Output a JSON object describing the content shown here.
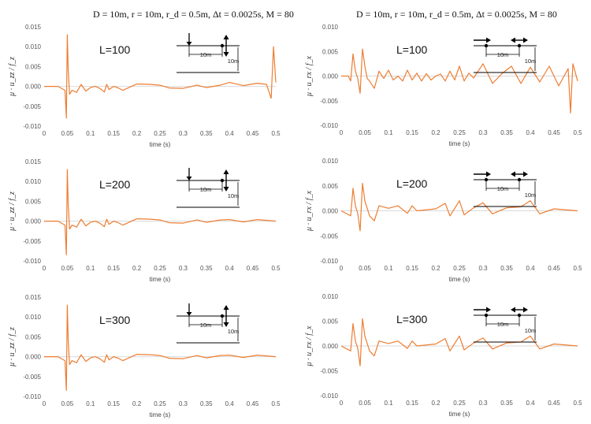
{
  "header_left": "D = 10m,   r = 10m,   r_d = 0.5m,   Δt = 0.0025s,   M = 80",
  "header_right": "D = 10m,   r = 10m,   r_d = 0.5m,   Δt = 0.0025s,   M = 80",
  "line_color": "#ED7D31",
  "chart_data": [
    {
      "type": "line",
      "panel": "left-1",
      "label": "L=100",
      "ylabel": "μ · u_zz / f_z",
      "xlabel": "time  (s)",
      "xlim": [
        0,
        0.5
      ],
      "ylim": [
        -0.01,
        0.015
      ],
      "grid": false,
      "yticks": [
        "0.015",
        "0.010",
        "0.005",
        "0.000",
        "-0.005",
        "-0.010"
      ],
      "xticks": [
        "0",
        "0.05",
        "0.1",
        "0.15",
        "0.2",
        "0.25",
        "0.3",
        "0.35",
        "0.4",
        "0.45",
        "0.5"
      ],
      "diagram": {
        "dist1": "10m",
        "dist2": "10m"
      },
      "x": [
        0,
        0.02,
        0.03,
        0.045,
        0.048,
        0.05,
        0.052,
        0.055,
        0.06,
        0.07,
        0.08,
        0.09,
        0.1,
        0.11,
        0.12,
        0.13,
        0.135,
        0.14,
        0.15,
        0.16,
        0.17,
        0.2,
        0.23,
        0.25,
        0.27,
        0.3,
        0.33,
        0.35,
        0.38,
        0.4,
        0.43,
        0.46,
        0.48,
        0.49,
        0.495,
        0.5
      ],
      "y": [
        0,
        0,
        0,
        -0.001,
        -0.008,
        0.013,
        0.004,
        -0.002,
        -0.001,
        -0.0015,
        0.0005,
        -0.0012,
        -0.0003,
        0,
        -0.0005,
        -0.0014,
        0.0005,
        -0.0008,
        0,
        -0.0004,
        -0.001,
        0.0006,
        0.0005,
        0.0003,
        -0.0004,
        -0.0005,
        0.0003,
        -0.0003,
        0.0003,
        0.001,
        0.0002,
        0.0008,
        0.0005,
        -0.003,
        0.01,
        0.001
      ]
    },
    {
      "type": "line",
      "panel": "right-1",
      "label": "L=100",
      "ylabel": "μ · u_rx / f_x",
      "xlabel": "time  (s)",
      "xlim": [
        0,
        0.5
      ],
      "ylim": [
        -0.01,
        0.01
      ],
      "grid": false,
      "yticks": [
        "0.010",
        "0.005",
        "0.000",
        "-0.005",
        "-0.010"
      ],
      "xticks": [
        "0",
        "0.05",
        "0.1",
        "0.15",
        "0.2",
        "0.25",
        "0.3",
        "0.35",
        "0.4",
        "0.45",
        "0.5"
      ],
      "diagram": {
        "dist1": "10m",
        "dist2": "10m"
      },
      "x": [
        0,
        0.01,
        0.015,
        0.02,
        0.025,
        0.03,
        0.035,
        0.04,
        0.045,
        0.05,
        0.055,
        0.06,
        0.07,
        0.08,
        0.09,
        0.1,
        0.11,
        0.12,
        0.13,
        0.14,
        0.15,
        0.16,
        0.17,
        0.18,
        0.19,
        0.2,
        0.21,
        0.22,
        0.23,
        0.24,
        0.25,
        0.26,
        0.27,
        0.28,
        0.3,
        0.32,
        0.34,
        0.36,
        0.38,
        0.4,
        0.42,
        0.44,
        0.46,
        0.48,
        0.485,
        0.49,
        0.5
      ],
      "y": [
        0,
        0,
        0,
        -0.001,
        0.0045,
        0.001,
        -0.0005,
        -0.0035,
        0.0055,
        0.002,
        -0.0005,
        -0.001,
        -0.0025,
        0.001,
        -0.0005,
        0.0012,
        -0.0008,
        0,
        -0.001,
        0.0012,
        -0.0008,
        0.0006,
        -0.001,
        0.0005,
        -0.0008,
        0,
        0.0004,
        -0.001,
        0.001,
        -0.0008,
        0.002,
        -0.001,
        0.0006,
        -0.0004,
        0.0025,
        -0.0015,
        0.0005,
        0.002,
        -0.0015,
        0.0018,
        -0.0012,
        0.002,
        -0.002,
        0.0015,
        -0.0075,
        0.0025,
        -0.001
      ]
    },
    {
      "type": "line",
      "panel": "left-2",
      "label": "L=200",
      "ylabel": "μ · u_zz / f_z",
      "xlabel": "time  (s)",
      "xlim": [
        0,
        0.5
      ],
      "ylim": [
        -0.01,
        0.015
      ],
      "grid": false,
      "yticks": [
        "0.015",
        "0.010",
        "0.005",
        "0.000",
        "-0.005",
        "-0.010"
      ],
      "xticks": [
        "0",
        "0.05",
        "0.1",
        "0.15",
        "0.2",
        "0.25",
        "0.3",
        "0.35",
        "0.4",
        "0.45",
        "0.5"
      ],
      "diagram": {
        "dist1": "10m",
        "dist2": "10m"
      },
      "x": [
        0,
        0.02,
        0.03,
        0.045,
        0.048,
        0.05,
        0.052,
        0.055,
        0.06,
        0.07,
        0.08,
        0.09,
        0.1,
        0.11,
        0.12,
        0.13,
        0.135,
        0.14,
        0.15,
        0.16,
        0.17,
        0.2,
        0.23,
        0.25,
        0.27,
        0.3,
        0.33,
        0.35,
        0.38,
        0.4,
        0.43,
        0.46,
        0.48,
        0.5
      ],
      "y": [
        0,
        0,
        0,
        -0.001,
        -0.0085,
        0.013,
        0.004,
        -0.002,
        -0.001,
        -0.0015,
        0.0005,
        -0.0012,
        -0.0003,
        0,
        -0.0005,
        -0.0014,
        0.0005,
        -0.0008,
        0,
        -0.0004,
        -0.001,
        0.0006,
        0.0005,
        0.0003,
        -0.0004,
        -0.0005,
        0.0003,
        -0.0003,
        0.0003,
        0.0004,
        -0.0002,
        0.0004,
        0.0002,
        0
      ]
    },
    {
      "type": "line",
      "panel": "right-2",
      "label": "L=200",
      "ylabel": "μ · u_rx / f_x",
      "xlabel": "time  (s)",
      "xlim": [
        0,
        0.5
      ],
      "ylim": [
        -0.01,
        0.01
      ],
      "grid": false,
      "yticks": [
        "0.010",
        "0.005",
        "0.000",
        "-0.005",
        "-0.010"
      ],
      "xticks": [
        "0",
        "0.05",
        "0.1",
        "0.15",
        "0.2",
        "0.25",
        "0.3",
        "0.35",
        "0.4",
        "0.45",
        "0.5"
      ],
      "diagram": {
        "dist1": "10m",
        "dist2": "10m"
      },
      "x": [
        0,
        0.02,
        0.025,
        0.03,
        0.035,
        0.04,
        0.045,
        0.05,
        0.06,
        0.07,
        0.08,
        0.1,
        0.12,
        0.14,
        0.15,
        0.16,
        0.2,
        0.22,
        0.23,
        0.25,
        0.26,
        0.28,
        0.3,
        0.32,
        0.35,
        0.38,
        0.4,
        0.42,
        0.45,
        0.5
      ],
      "y": [
        0,
        -0.001,
        0.0045,
        0.001,
        -0.0005,
        -0.004,
        0.0055,
        0.002,
        -0.001,
        -0.002,
        0.001,
        0.0005,
        0.001,
        -0.0005,
        0.001,
        0,
        0.0004,
        0.0015,
        -0.001,
        0.002,
        -0.0008,
        0.0006,
        0.0016,
        -0.0006,
        0.0006,
        0.0008,
        0.002,
        -0.0006,
        0.0004,
        0
      ]
    },
    {
      "type": "line",
      "panel": "left-3",
      "label": "L=300",
      "ylabel": "μ · u_zz / f_z",
      "xlabel": "time  (s)",
      "xlim": [
        0,
        0.5
      ],
      "ylim": [
        -0.01,
        0.015
      ],
      "grid": false,
      "yticks": [
        "0.015",
        "0.010",
        "0.005",
        "0.000",
        "-0.005",
        "-0.010"
      ],
      "xticks": [
        "0",
        "0.05",
        "0.1",
        "0.15",
        "0.2",
        "0.25",
        "0.3",
        "0.35",
        "0.4",
        "0.45",
        "0.5"
      ],
      "diagram": {
        "dist1": "10m",
        "dist2": "10m"
      },
      "x": [
        0,
        0.02,
        0.03,
        0.045,
        0.048,
        0.05,
        0.052,
        0.055,
        0.06,
        0.07,
        0.08,
        0.09,
        0.1,
        0.11,
        0.12,
        0.13,
        0.135,
        0.14,
        0.15,
        0.16,
        0.17,
        0.2,
        0.23,
        0.25,
        0.27,
        0.3,
        0.33,
        0.35,
        0.38,
        0.4,
        0.43,
        0.46,
        0.48,
        0.5
      ],
      "y": [
        0,
        0,
        0,
        -0.001,
        -0.0085,
        0.013,
        0.004,
        -0.002,
        -0.001,
        -0.0015,
        0.0005,
        -0.0012,
        -0.0003,
        0,
        -0.0005,
        -0.0014,
        0.0005,
        -0.0008,
        0,
        -0.0004,
        -0.001,
        0.0006,
        0.0005,
        0.0003,
        -0.0004,
        -0.0005,
        0.0003,
        -0.0003,
        0.0003,
        0.0004,
        -0.0002,
        0.0004,
        0.0002,
        0
      ]
    },
    {
      "type": "line",
      "panel": "right-3",
      "label": "L=300",
      "ylabel": "μ · u_rx / f_x",
      "xlabel": "time  (s)",
      "xlim": [
        0,
        0.5
      ],
      "ylim": [
        -0.01,
        0.01
      ],
      "grid": false,
      "yticks": [
        "0.010",
        "0.005",
        "0.000",
        "-0.005",
        "-0.010"
      ],
      "xticks": [
        "0",
        "0.05",
        "0.1",
        "0.15",
        "0.2",
        "0.25",
        "0.3",
        "0.35",
        "0.4",
        "0.45",
        "0.5"
      ],
      "diagram": {
        "dist1": "10m",
        "dist2": "10m"
      },
      "x": [
        0,
        0.02,
        0.025,
        0.03,
        0.035,
        0.04,
        0.045,
        0.05,
        0.06,
        0.07,
        0.08,
        0.1,
        0.12,
        0.14,
        0.15,
        0.16,
        0.2,
        0.22,
        0.23,
        0.25,
        0.26,
        0.28,
        0.3,
        0.32,
        0.35,
        0.38,
        0.4,
        0.42,
        0.45,
        0.5
      ],
      "y": [
        0,
        -0.001,
        0.0045,
        0.001,
        -0.0005,
        -0.004,
        0.0055,
        0.002,
        -0.001,
        -0.002,
        0.001,
        0.0005,
        0.001,
        -0.0005,
        0.001,
        0,
        0.0004,
        0.0015,
        -0.001,
        0.002,
        -0.0008,
        0.0006,
        0.0016,
        -0.0006,
        0.0006,
        0.0008,
        0.002,
        -0.0006,
        0.0004,
        0
      ]
    }
  ]
}
